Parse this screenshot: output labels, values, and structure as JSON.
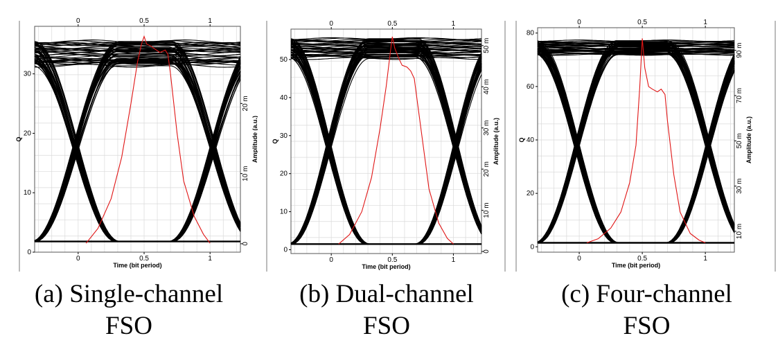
{
  "colors": {
    "eye": "#000000",
    "ber_curve": "#e01515",
    "grid": "#d9d9d9",
    "frame": "#555555"
  },
  "chart_data": [
    {
      "type": "line",
      "caption_line1": "(a) Single-channel",
      "caption_line2": "FSO",
      "xlabel": "Time (bit period)",
      "ylabel_left": "Q",
      "ylabel_right": "Amplitude (a.u.)",
      "xlim": [
        -0.33,
        1.23
      ],
      "ylim_left": [
        0,
        38
      ],
      "ylim_right": [
        -0.0012,
        0.031
      ],
      "x_ticks_bottom": [
        {
          "v": 0,
          "label": "0"
        },
        {
          "v": 0.5,
          "label": "0.5"
        },
        {
          "v": 1,
          "label": "1"
        }
      ],
      "x_ticks_top": [
        {
          "v": 0,
          "label": "0"
        },
        {
          "v": 0.5,
          "label": "0.5"
        },
        {
          "v": 1,
          "label": "1"
        }
      ],
      "y_ticks_left": [
        {
          "v": 0,
          "label": "0"
        },
        {
          "v": 10,
          "label": "10"
        },
        {
          "v": 20,
          "label": "20"
        },
        {
          "v": 30,
          "label": "30"
        }
      ],
      "y_ticks_right": [
        {
          "v": 0,
          "label": "0"
        },
        {
          "v": 0.01,
          "label": "10 m"
        },
        {
          "v": 0.02,
          "label": "20 m"
        }
      ],
      "eye_levels": {
        "high_min": 31.5,
        "high_max": 35.5,
        "low": 1.8,
        "crossing_x": [
          -0.02,
          1.02
        ]
      },
      "q_factor_curve": {
        "x": [
          0.06,
          0.15,
          0.25,
          0.33,
          0.4,
          0.45,
          0.48,
          0.5,
          0.52,
          0.55,
          0.58,
          0.62,
          0.66,
          0.68,
          0.7,
          0.75,
          0.8,
          0.88,
          0.95,
          1.0
        ],
        "y": [
          1.5,
          4,
          9,
          16,
          25,
          32,
          35,
          36.3,
          35,
          34.7,
          34.2,
          33.6,
          34,
          33.3,
          30,
          20,
          12,
          6,
          3,
          1.5
        ]
      }
    },
    {
      "type": "line",
      "caption_line1": "(b) Dual-channel",
      "caption_line2": "FSO",
      "xlabel": "Time (bit period)",
      "ylabel_left": "Q",
      "ylabel_right": "Amplitude (a.u.)",
      "xlim": [
        -0.33,
        1.23
      ],
      "ylim_left": [
        -1,
        58
      ],
      "ylim_right": [
        -0.0005,
        0.054
      ],
      "x_ticks_bottom": [
        {
          "v": 0,
          "label": "0"
        },
        {
          "v": 0.5,
          "label": "0.5"
        },
        {
          "v": 1,
          "label": "1"
        }
      ],
      "x_ticks_top": [
        {
          "v": 0,
          "label": "0"
        },
        {
          "v": 0.5,
          "label": "0.5"
        },
        {
          "v": 1,
          "label": "1"
        }
      ],
      "y_ticks_left": [
        {
          "v": 0,
          "label": "0"
        },
        {
          "v": 10,
          "label": "10"
        },
        {
          "v": 20,
          "label": "20"
        },
        {
          "v": 30,
          "label": "30"
        },
        {
          "v": 40,
          "label": "40"
        },
        {
          "v": 50,
          "label": "50"
        }
      ],
      "y_ticks_right": [
        {
          "v": 0,
          "label": "0"
        },
        {
          "v": 0.01,
          "label": "10 m"
        },
        {
          "v": 0.02,
          "label": "20 m"
        },
        {
          "v": 0.03,
          "label": "30 m"
        },
        {
          "v": 0.04,
          "label": "40 m"
        },
        {
          "v": 0.05,
          "label": "50 m"
        }
      ],
      "eye_levels": {
        "high_min": 50.5,
        "high_max": 55.5,
        "low": 1.5,
        "crossing_x": [
          -0.02,
          1.02
        ]
      },
      "q_factor_curve": {
        "x": [
          0.06,
          0.15,
          0.25,
          0.33,
          0.4,
          0.45,
          0.48,
          0.5,
          0.52,
          0.55,
          0.58,
          0.62,
          0.65,
          0.68,
          0.7,
          0.75,
          0.8,
          0.88,
          0.95,
          1.0
        ],
        "y": [
          1.5,
          4,
          10,
          19,
          32,
          43,
          51,
          56,
          53,
          50.5,
          48.5,
          48,
          47,
          45,
          40,
          28,
          16,
          7,
          3,
          1.5
        ]
      }
    },
    {
      "type": "line",
      "caption_line1": "(c) Four-channel",
      "caption_line2": "FSO",
      "xlabel": "Time (bit period)",
      "ylabel_left": "Q",
      "ylabel_right": "Amplitude (a.u.)",
      "xlim": [
        -0.33,
        1.23
      ],
      "ylim_left": [
        -2,
        82
      ],
      "ylim_right": [
        0.0008,
        0.1
      ],
      "x_ticks_bottom": [
        {
          "v": 0,
          "label": "0"
        },
        {
          "v": 0.5,
          "label": "0.5"
        },
        {
          "v": 1,
          "label": "1"
        }
      ],
      "x_ticks_top": [
        {
          "v": 0,
          "label": "0"
        },
        {
          "v": 0.5,
          "label": "0.5"
        },
        {
          "v": 1,
          "label": "1"
        }
      ],
      "y_ticks_left": [
        {
          "v": 0,
          "label": "0"
        },
        {
          "v": 20,
          "label": "20"
        },
        {
          "v": 40,
          "label": "40"
        },
        {
          "v": 60,
          "label": "60"
        },
        {
          "v": 80,
          "label": "80"
        }
      ],
      "y_ticks_right": [
        {
          "v": 0.01,
          "label": "10 m"
        },
        {
          "v": 0.03,
          "label": "30 m"
        },
        {
          "v": 0.05,
          "label": "50 m"
        },
        {
          "v": 0.07,
          "label": "70 m"
        },
        {
          "v": 0.09,
          "label": "90 m"
        }
      ],
      "eye_levels": {
        "high_min": 72,
        "high_max": 77,
        "low": 1.5,
        "crossing_x": [
          -0.02,
          1.02
        ]
      },
      "q_factor_curve": {
        "x": [
          0.06,
          0.15,
          0.25,
          0.33,
          0.4,
          0.45,
          0.48,
          0.5,
          0.52,
          0.55,
          0.58,
          0.62,
          0.65,
          0.68,
          0.7,
          0.75,
          0.8,
          0.88,
          0.95,
          1.0
        ],
        "y": [
          1.5,
          3,
          7,
          13,
          24,
          38,
          60,
          78,
          67,
          60,
          59,
          58,
          59,
          57,
          47,
          27,
          13,
          5,
          2.5,
          1.5
        ]
      }
    }
  ]
}
